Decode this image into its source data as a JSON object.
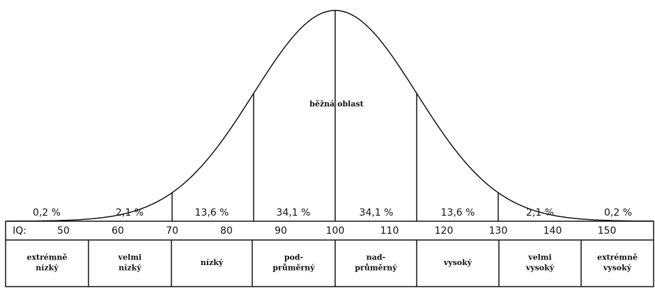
{
  "title": "běžná oblast",
  "percentages": [
    "0,2 %",
    "2,1 %",
    "13,6 %",
    "34,1 %",
    "34,1 %",
    "13,6 %",
    "2,1 %",
    "0,2 %"
  ],
  "iq_label": "IQ:",
  "iq_values": [
    "50",
    "60",
    "70",
    "80",
    "90",
    "100",
    "110",
    "120",
    "130",
    "140",
    "150"
  ],
  "categories": [
    [
      "extrémně",
      "nízký"
    ],
    [
      "velmi",
      "nízký"
    ],
    [
      "nízký"
    ],
    [
      "pod-",
      "průměrný"
    ],
    [
      "nad-",
      "průměrný"
    ],
    [
      "vysoký"
    ],
    [
      "velmi",
      "vysoký"
    ],
    [
      "extrémně",
      "vysoký"
    ]
  ]
}
